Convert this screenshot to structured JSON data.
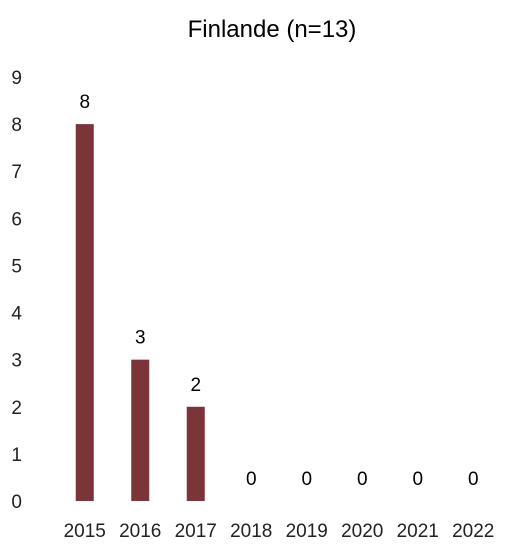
{
  "chart_data": {
    "type": "bar",
    "title": "Finlande (n=13)",
    "xlabel": "",
    "ylabel": "",
    "categories": [
      "2015",
      "2016",
      "2017",
      "2018",
      "2019",
      "2020",
      "2021",
      "2022"
    ],
    "values": [
      8,
      3,
      2,
      0,
      0,
      0,
      0,
      0
    ],
    "ylim": [
      0,
      9
    ],
    "yticks": [
      0,
      1,
      2,
      3,
      4,
      5,
      6,
      7,
      8,
      9
    ],
    "grid": false,
    "legend": "none",
    "data_labels": true,
    "bar_color": "#7b3437"
  }
}
